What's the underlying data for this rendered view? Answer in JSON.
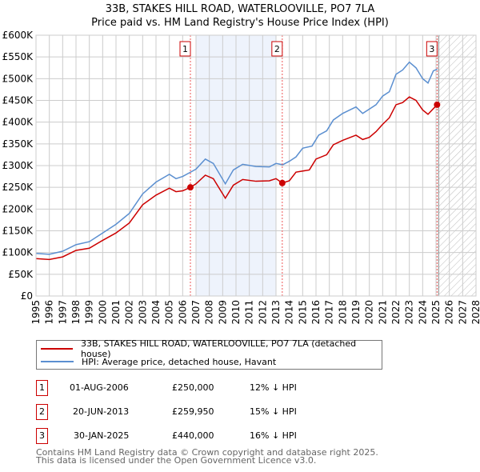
{
  "title": "33B, STAKES HILL ROAD, WATERLOOVILLE, PO7 7LA",
  "subtitle": "Price paid vs. HM Land Registry's House Price Index (HPI)",
  "chart_data": {
    "type": "line",
    "xlim": [
      1995,
      2028
    ],
    "ylim": [
      0,
      600000
    ],
    "yticks": [
      0,
      50000,
      100000,
      150000,
      200000,
      250000,
      300000,
      350000,
      400000,
      450000,
      500000,
      550000,
      600000
    ],
    "ytick_labels": [
      "£0",
      "£50K",
      "£100K",
      "£150K",
      "£200K",
      "£250K",
      "£300K",
      "£350K",
      "£400K",
      "£450K",
      "£500K",
      "£550K",
      "£600K"
    ],
    "xticks": [
      1995,
      1996,
      1997,
      1998,
      1999,
      2000,
      2001,
      2002,
      2003,
      2004,
      2005,
      2006,
      2007,
      2008,
      2009,
      2010,
      2011,
      2012,
      2013,
      2014,
      2015,
      2016,
      2017,
      2018,
      2019,
      2020,
      2021,
      2022,
      2023,
      2024,
      2025,
      2026,
      2027,
      2028
    ],
    "shaded_range": [
      2007.0,
      2013.0
    ],
    "forecast_from": 2025.2,
    "grid": true,
    "series": [
      {
        "name": "33B, STAKES HILL ROAD, WATERLOOVILLE, PO7 7LA (detached house)",
        "color": "#cc0000",
        "x": [
          1995,
          1996,
          1997,
          1998,
          1999,
          2000,
          2001,
          2002,
          2003,
          2004,
          2005,
          2005.5,
          2006,
          2006.58,
          2007,
          2007.7,
          2008.3,
          2009.2,
          2009.8,
          2010.5,
          2011.5,
          2012.5,
          2013,
          2013.47,
          2014,
          2014.5,
          2015.5,
          2016,
          2016.8,
          2017.3,
          2018,
          2019,
          2019.5,
          2020,
          2020.5,
          2021,
          2021.5,
          2022,
          2022.5,
          2023,
          2023.5,
          2024,
          2024.4,
          2025.08,
          2025.2
        ],
        "y": [
          86000,
          84000,
          90000,
          105000,
          110000,
          128000,
          145000,
          168000,
          210000,
          232000,
          248000,
          240000,
          242000,
          250000,
          258000,
          278000,
          270000,
          225000,
          255000,
          268000,
          264000,
          265000,
          270000,
          259950,
          265000,
          285000,
          290000,
          315000,
          325000,
          348000,
          358000,
          370000,
          360000,
          365000,
          378000,
          395000,
          410000,
          440000,
          445000,
          458000,
          450000,
          428000,
          418000,
          440000,
          438000
        ]
      },
      {
        "name": "HPI: Average price, detached house, Havant",
        "color": "#5b8fd0",
        "x": [
          1995,
          1996,
          1997,
          1998,
          1999,
          2000,
          2001,
          2002,
          2003,
          2004,
          2005,
          2005.5,
          2006,
          2006.6,
          2007,
          2007.7,
          2008.3,
          2009.2,
          2009.8,
          2010.5,
          2011.5,
          2012.5,
          2013,
          2013.5,
          2014,
          2014.5,
          2015,
          2015.7,
          2016.2,
          2016.8,
          2017.3,
          2018,
          2019,
          2019.5,
          2020,
          2020.5,
          2021,
          2021.5,
          2022,
          2022.5,
          2023,
          2023.5,
          2024,
          2024.4,
          2024.8,
          2025.1
        ],
        "y": [
          98000,
          96000,
          103000,
          118000,
          125000,
          145000,
          165000,
          190000,
          235000,
          262000,
          280000,
          270000,
          275000,
          285000,
          292000,
          315000,
          305000,
          258000,
          290000,
          303000,
          298000,
          297000,
          305000,
          302000,
          310000,
          320000,
          340000,
          345000,
          370000,
          380000,
          405000,
          420000,
          435000,
          420000,
          430000,
          440000,
          460000,
          470000,
          510000,
          520000,
          538000,
          525000,
          500000,
          490000,
          518000,
          522000
        ]
      }
    ],
    "sales": [
      {
        "label": "1",
        "x": 2006.58,
        "y": 250000
      },
      {
        "label": "2",
        "x": 2013.47,
        "y": 259950
      },
      {
        "label": "3",
        "x": 2025.08,
        "y": 440000
      }
    ]
  },
  "transactions": [
    {
      "num": "1",
      "date": "01-AUG-2006",
      "price": "£250,000",
      "hpi": "12% ↓ HPI"
    },
    {
      "num": "2",
      "date": "20-JUN-2013",
      "price": "£259,950",
      "hpi": "15% ↓ HPI"
    },
    {
      "num": "3",
      "date": "30-JAN-2025",
      "price": "£440,000",
      "hpi": "16% ↓ HPI"
    }
  ],
  "footer": [
    "Contains HM Land Registry data © Crown copyright and database right 2025.",
    "This data is licensed under the Open Government Licence v3.0."
  ]
}
